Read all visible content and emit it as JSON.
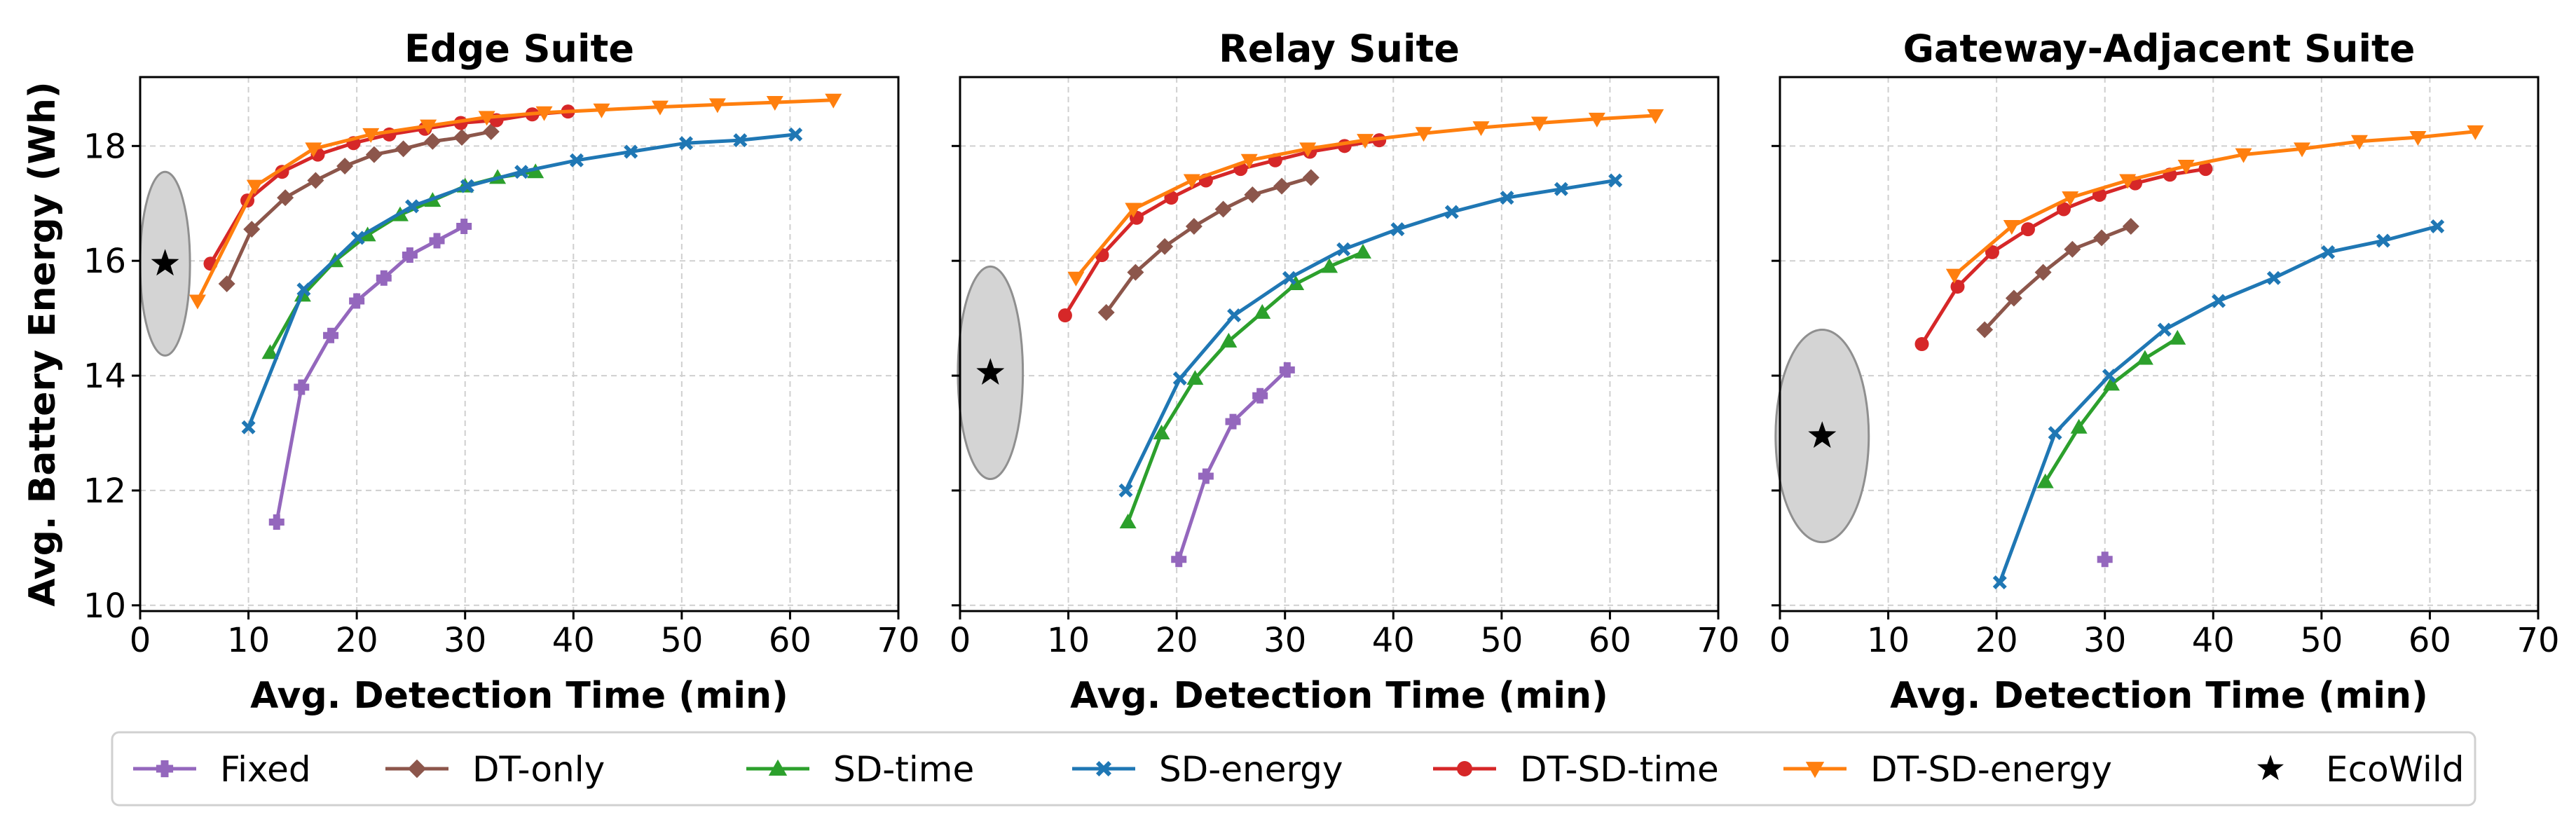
{
  "colors": {
    "Fixed": "#9467bd",
    "DT-only": "#8c564b",
    "SD-time": "#2ca02c",
    "SD-energy": "#1f77b4",
    "DT-SD-time": "#d62728",
    "DT-SD-energy": "#ff7f0e",
    "EcoWild": "#000000"
  },
  "legend": {
    "placement": "bottom",
    "items": [
      {
        "name": "Fixed",
        "marker": "plus",
        "color": "#9467bd"
      },
      {
        "name": "DT-only",
        "marker": "diamond",
        "color": "#8c564b"
      },
      {
        "name": "SD-time",
        "marker": "triangle-up",
        "color": "#2ca02c"
      },
      {
        "name": "SD-energy",
        "marker": "x",
        "color": "#1f77b4"
      },
      {
        "name": "DT-SD-time",
        "marker": "circle",
        "color": "#d62728"
      },
      {
        "name": "DT-SD-energy",
        "marker": "triangle-down",
        "color": "#ff7f0e"
      },
      {
        "name": "EcoWild",
        "marker": "star",
        "color": "#000000"
      }
    ]
  },
  "chart_data": [
    {
      "type": "line",
      "title": "Edge Suite",
      "xlabel": "Avg. Detection Time (min)",
      "ylabel": "Avg. Battery Energy (Wh)",
      "xlim": [
        0,
        70
      ],
      "ylim": [
        9.9,
        19.2
      ],
      "xticks": [
        "0",
        "10",
        "20",
        "30",
        "40",
        "50",
        "60",
        "70"
      ],
      "yticks": [
        "10",
        "12",
        "14",
        "16",
        "18"
      ],
      "grid": true,
      "series": [
        {
          "name": "Fixed",
          "x": [
            12.6,
            14.9,
            17.6,
            20,
            22.5,
            24.9,
            27.4,
            29.9
          ],
          "y": [
            11.45,
            13.8,
            14.7,
            15.3,
            15.7,
            16.1,
            16.35,
            16.6
          ]
        },
        {
          "name": "DT-only",
          "x": [
            8,
            10.3,
            13.4,
            16.2,
            18.9,
            21.6,
            24.3,
            27,
            29.7,
            32.4
          ],
          "y": [
            15.6,
            16.55,
            17.1,
            17.4,
            17.65,
            17.85,
            17.95,
            18.08,
            18.15,
            18.25
          ]
        },
        {
          "name": "SD-time",
          "x": [
            12,
            15,
            18,
            21,
            24,
            27,
            30,
            33,
            36.5
          ],
          "y": [
            14.4,
            15.4,
            16.0,
            16.45,
            16.8,
            17.05,
            17.3,
            17.45,
            17.55
          ]
        },
        {
          "name": "SD-energy",
          "x": [
            10,
            15.1,
            20.1,
            25.1,
            30.2,
            35.2,
            40.3,
            45.3,
            50.4,
            55.4,
            60.5
          ],
          "y": [
            13.1,
            15.5,
            16.4,
            16.95,
            17.3,
            17.55,
            17.75,
            17.9,
            18.05,
            18.1,
            18.2
          ]
        },
        {
          "name": "DT-SD-time",
          "x": [
            6.5,
            9.9,
            13.1,
            16.4,
            19.7,
            23,
            26.3,
            29.6,
            32.9,
            36.2,
            39.5
          ],
          "y": [
            15.95,
            17.05,
            17.55,
            17.85,
            18.05,
            18.2,
            18.3,
            18.4,
            18.45,
            18.55,
            18.6
          ]
        },
        {
          "name": "DT-SD-energy",
          "x": [
            5.3,
            10.6,
            16,
            21.3,
            26.6,
            32,
            37.3,
            42.6,
            48,
            53.3,
            58.6,
            64
          ],
          "y": [
            15.3,
            17.3,
            17.95,
            18.2,
            18.35,
            18.5,
            18.58,
            18.63,
            18.68,
            18.72,
            18.76,
            18.8
          ]
        }
      ],
      "ecowild": {
        "x": 2.3,
        "y": 15.95,
        "ellipse_rx": 2.3,
        "ellipse_ry": 1.6
      }
    },
    {
      "type": "line",
      "title": "Relay Suite",
      "xlabel": "Avg. Detection Time (min)",
      "ylabel": "",
      "xlim": [
        0,
        70
      ],
      "ylim": [
        9.9,
        19.2
      ],
      "xticks": [
        "0",
        "10",
        "20",
        "30",
        "40",
        "50",
        "60",
        "70"
      ],
      "yticks": [],
      "grid": true,
      "series": [
        {
          "name": "Fixed",
          "x": [
            20.2,
            22.7,
            25.2,
            27.7,
            30.2
          ],
          "y": [
            10.8,
            12.25,
            13.2,
            13.65,
            14.1
          ]
        },
        {
          "name": "DT-only",
          "x": [
            13.5,
            16.2,
            18.9,
            21.6,
            24.3,
            27,
            29.7,
            32.4
          ],
          "y": [
            15.1,
            15.8,
            16.25,
            16.6,
            16.9,
            17.15,
            17.3,
            17.45
          ]
        },
        {
          "name": "SD-time",
          "x": [
            15.5,
            18.6,
            21.7,
            24.8,
            27.9,
            31,
            34.1,
            37.2
          ],
          "y": [
            11.45,
            13.0,
            13.95,
            14.6,
            15.1,
            15.6,
            15.9,
            16.15
          ]
        },
        {
          "name": "SD-energy",
          "x": [
            15.3,
            20.3,
            25.3,
            30.4,
            35.4,
            40.4,
            45.4,
            50.5,
            55.5,
            60.5
          ],
          "y": [
            12.0,
            13.95,
            15.05,
            15.7,
            16.2,
            16.55,
            16.85,
            17.1,
            17.25,
            17.4
          ]
        },
        {
          "name": "DT-SD-time",
          "x": [
            9.7,
            13.1,
            16.3,
            19.5,
            22.7,
            25.9,
            29.1,
            32.3,
            35.5,
            38.7
          ],
          "y": [
            15.05,
            16.1,
            16.75,
            17.1,
            17.4,
            17.6,
            17.75,
            17.9,
            18.0,
            18.1
          ]
        },
        {
          "name": "DT-SD-energy",
          "x": [
            10.7,
            16,
            21.4,
            26.7,
            32.1,
            37.4,
            42.8,
            48.1,
            53.5,
            58.8,
            64.2
          ],
          "y": [
            15.7,
            16.9,
            17.4,
            17.75,
            17.95,
            18.1,
            18.22,
            18.32,
            18.4,
            18.47,
            18.53
          ]
        }
      ],
      "ecowild": {
        "x": 2.8,
        "y": 14.05,
        "ellipse_rx": 3.0,
        "ellipse_ry": 1.85
      }
    },
    {
      "type": "line",
      "title": "Gateway-Adjacent Suite",
      "xlabel": "Avg. Detection Time (min)",
      "ylabel": "",
      "xlim": [
        0,
        70
      ],
      "ylim": [
        9.9,
        19.2
      ],
      "xticks": [
        "0",
        "10",
        "20",
        "30",
        "40",
        "50",
        "60",
        "70"
      ],
      "yticks": [],
      "grid": true,
      "series": [
        {
          "name": "Fixed",
          "x": [
            30
          ],
          "y": [
            10.8
          ]
        },
        {
          "name": "DT-only",
          "x": [
            18.9,
            21.6,
            24.3,
            27,
            29.7,
            32.4
          ],
          "y": [
            14.8,
            15.35,
            15.8,
            16.2,
            16.4,
            16.6
          ]
        },
        {
          "name": "SD-time",
          "x": [
            24.5,
            27.6,
            30.6,
            33.7,
            36.7
          ],
          "y": [
            12.15,
            13.1,
            13.85,
            14.3,
            14.65
          ]
        },
        {
          "name": "SD-energy",
          "x": [
            20.3,
            25.4,
            30.4,
            35.5,
            40.5,
            45.6,
            50.6,
            55.7,
            60.7
          ],
          "y": [
            10.4,
            13.0,
            14.0,
            14.8,
            15.3,
            15.7,
            16.15,
            16.35,
            16.6
          ]
        },
        {
          "name": "DT-SD-time",
          "x": [
            13.1,
            16.4,
            19.6,
            22.9,
            26.2,
            29.5,
            32.8,
            36,
            39.3
          ],
          "y": [
            14.55,
            15.55,
            16.15,
            16.55,
            16.9,
            17.15,
            17.35,
            17.5,
            17.6
          ]
        },
        {
          "name": "DT-SD-energy",
          "x": [
            16.1,
            21.4,
            26.8,
            32.1,
            37.5,
            42.8,
            48.2,
            53.5,
            58.9,
            64.2
          ],
          "y": [
            15.75,
            16.6,
            17.1,
            17.4,
            17.65,
            17.85,
            17.95,
            18.08,
            18.15,
            18.25
          ]
        }
      ],
      "ecowild": {
        "x": 3.9,
        "y": 12.95,
        "ellipse_rx": 4.3,
        "ellipse_ry": 1.85
      }
    }
  ]
}
